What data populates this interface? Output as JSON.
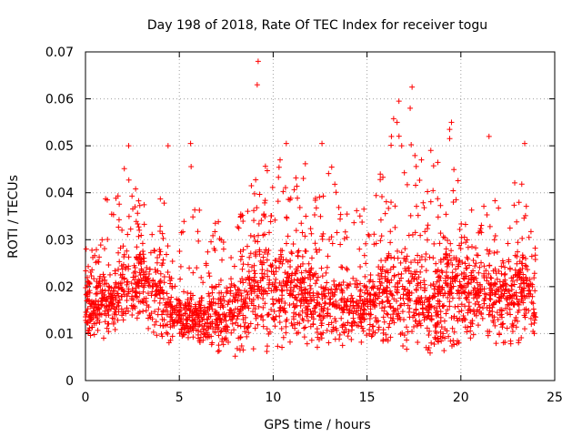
{
  "chart_data": {
    "type": "scatter",
    "title": "Day 198 of 2018, Rate Of TEC Index for receiver togu",
    "xlabel": "GPS time / hours",
    "ylabel": "ROTI / TECUs",
    "xlim": [
      0,
      25
    ],
    "ylim": [
      0,
      0.07
    ],
    "xticks": [
      0,
      5,
      10,
      15,
      20,
      25
    ],
    "yticks": [
      0,
      0.01,
      0.02,
      0.03,
      0.04,
      0.05,
      0.06,
      0.07
    ],
    "xtick_labels": [
      "0",
      "5",
      "10",
      "15",
      "20",
      "25"
    ],
    "ytick_labels": [
      "0",
      "0.01",
      "0.02",
      "0.03",
      "0.04",
      "0.05",
      "0.06",
      "0.07"
    ],
    "grid": true,
    "marker": "plus",
    "point_color": "#ff0000",
    "envelope": {
      "x": [
        0,
        0.5,
        1,
        1.5,
        2,
        2.5,
        3,
        3.5,
        4,
        4.5,
        5,
        5.5,
        6,
        6.5,
        7,
        7.5,
        8,
        8.5,
        9,
        9.5,
        10,
        10.5,
        11,
        11.5,
        12,
        12.5,
        13,
        13.5,
        14,
        14.5,
        15,
        15.5,
        16,
        16.5,
        17,
        17.5,
        18,
        18.5,
        19,
        19.5,
        20,
        20.5,
        21,
        21.5,
        22,
        22.5,
        23,
        23.5,
        24
      ],
      "min": [
        0.01,
        0.009,
        0.008,
        0.01,
        0.011,
        0.012,
        0.011,
        0.01,
        0.009,
        0.007,
        0.008,
        0.009,
        0.008,
        0.008,
        0.006,
        0.005,
        0.005,
        0.006,
        0.006,
        0.005,
        0.006,
        0.007,
        0.008,
        0.008,
        0.007,
        0.007,
        0.008,
        0.007,
        0.008,
        0.008,
        0.008,
        0.008,
        0.008,
        0.007,
        0.006,
        0.006,
        0.007,
        0.005,
        0.006,
        0.007,
        0.008,
        0.009,
        0.01,
        0.008,
        0.007,
        0.008,
        0.007,
        0.008,
        0.01
      ],
      "max": [
        0.032,
        0.027,
        0.04,
        0.036,
        0.048,
        0.04,
        0.044,
        0.031,
        0.039,
        0.048,
        0.028,
        0.05,
        0.038,
        0.028,
        0.035,
        0.031,
        0.034,
        0.044,
        0.049,
        0.047,
        0.045,
        0.05,
        0.043,
        0.049,
        0.045,
        0.043,
        0.048,
        0.04,
        0.036,
        0.038,
        0.037,
        0.04,
        0.053,
        0.057,
        0.047,
        0.053,
        0.04,
        0.049,
        0.045,
        0.054,
        0.038,
        0.04,
        0.036,
        0.04,
        0.038,
        0.032,
        0.05,
        0.038,
        0.029
      ],
      "median": [
        0.017,
        0.014,
        0.017,
        0.016,
        0.021,
        0.019,
        0.021,
        0.018,
        0.018,
        0.014,
        0.013,
        0.014,
        0.013,
        0.013,
        0.013,
        0.013,
        0.014,
        0.015,
        0.019,
        0.02,
        0.019,
        0.019,
        0.018,
        0.017,
        0.016,
        0.015,
        0.016,
        0.016,
        0.015,
        0.015,
        0.016,
        0.016,
        0.018,
        0.018,
        0.017,
        0.017,
        0.015,
        0.014,
        0.018,
        0.019,
        0.018,
        0.018,
        0.018,
        0.019,
        0.018,
        0.017,
        0.019,
        0.018,
        0.015
      ]
    },
    "outliers": [
      {
        "x": 9.2,
        "y": 0.068
      },
      {
        "x": 9.15,
        "y": 0.063
      },
      {
        "x": 17.4,
        "y": 0.0625
      },
      {
        "x": 16.7,
        "y": 0.0595
      },
      {
        "x": 17.3,
        "y": 0.058
      },
      {
        "x": 16.6,
        "y": 0.055
      },
      {
        "x": 19.5,
        "y": 0.055
      },
      {
        "x": 21.5,
        "y": 0.052
      },
      {
        "x": 12.6,
        "y": 0.0505
      },
      {
        "x": 5.6,
        "y": 0.0505
      },
      {
        "x": 2.3,
        "y": 0.05
      },
      {
        "x": 4.4,
        "y": 0.05
      },
      {
        "x": 23.4,
        "y": 0.0505
      },
      {
        "x": 10.7,
        "y": 0.0505
      },
      {
        "x": 18.4,
        "y": 0.049
      },
      {
        "x": 17.9,
        "y": 0.047
      },
      {
        "x": 19.4,
        "y": 0.0535
      },
      {
        "x": 16.3,
        "y": 0.052
      }
    ]
  }
}
